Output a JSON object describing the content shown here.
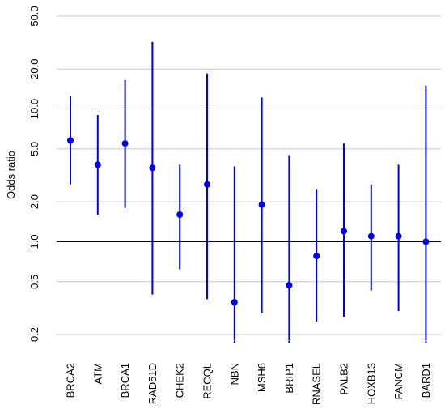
{
  "chart_data": {
    "type": "scatter",
    "ylabel": "Odds ratio",
    "y_scale": "log",
    "ylim": [
      0.2,
      50
    ],
    "yticks": [
      0.2,
      0.5,
      1.0,
      2.0,
      5.0,
      10.0,
      20.0,
      50.0
    ],
    "ytick_labels": [
      "0.2",
      "0.5",
      "1.0",
      "2.0",
      "5.0",
      "10.0",
      "20.0",
      "50.0"
    ],
    "reference_line": 1.0,
    "grid": "horizontal",
    "color": "#0000ee",
    "categories": [
      "BRCA2",
      "ATM",
      "BRCA1",
      "RAD51D",
      "CHEK2",
      "RECQL",
      "NBN",
      "MSH6",
      "BRIP1",
      "RNASEL",
      "PALB2",
      "HOXB13",
      "FANCM",
      "BARD1"
    ],
    "estimate": [
      5.8,
      3.8,
      5.5,
      3.6,
      1.6,
      2.7,
      0.35,
      1.9,
      0.47,
      0.78,
      1.2,
      1.1,
      1.1,
      1.0
    ],
    "lower": [
      2.7,
      1.6,
      1.8,
      0.4,
      0.62,
      0.37,
      0.18,
      0.29,
      0.18,
      0.25,
      0.27,
      0.43,
      0.3,
      0.18
    ],
    "upper": [
      12.5,
      9.0,
      16.5,
      32.0,
      3.8,
      18.5,
      3.7,
      12.2,
      4.5,
      2.5,
      5.5,
      2.7,
      3.8,
      15.0
    ],
    "lower_truncated": [
      false,
      false,
      false,
      false,
      false,
      false,
      true,
      false,
      true,
      false,
      false,
      false,
      false,
      true
    ]
  }
}
